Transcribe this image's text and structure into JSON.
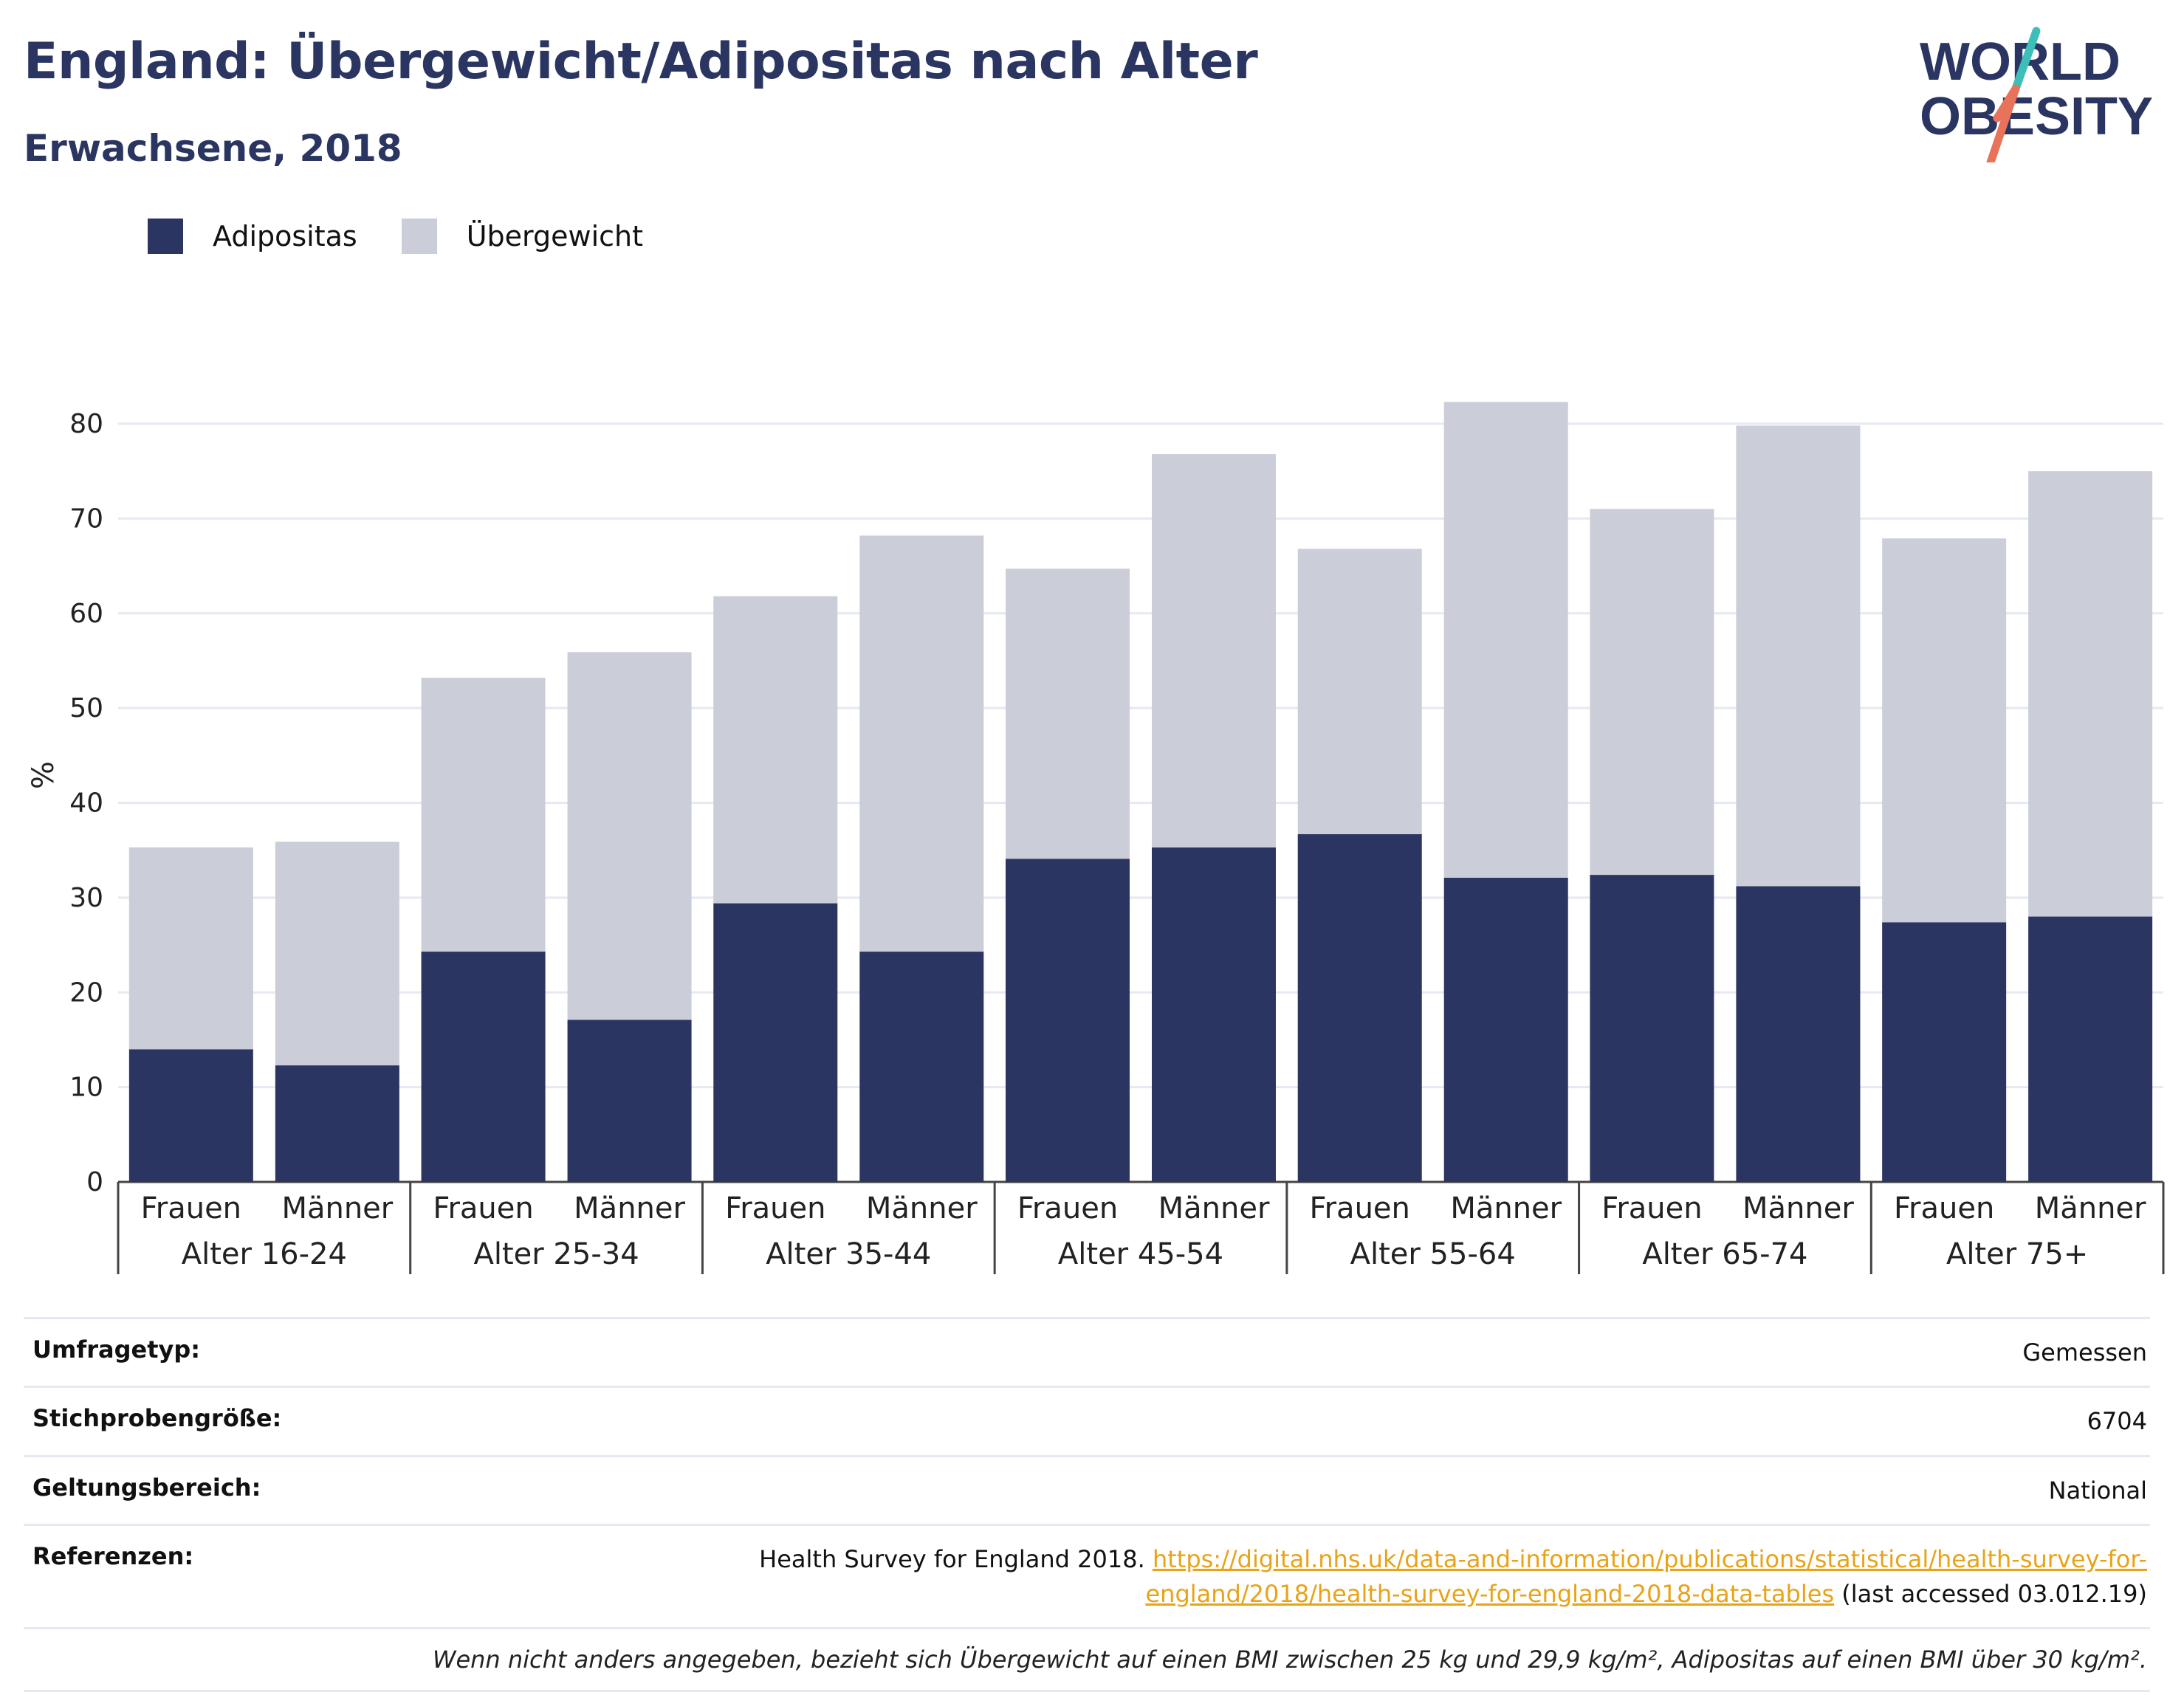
{
  "header": {
    "title": "England: Übergewicht/Adipositas nach Alter",
    "subtitle": "Erwachsene, 2018"
  },
  "logo": {
    "line1": "WORLD",
    "line2": "OBESITY",
    "colors": {
      "text": "#2a3561",
      "slash_top": "#3bbfb8",
      "slash_bottom": "#e8735a"
    }
  },
  "colors": {
    "adipositas": "#2a3561",
    "uebergewicht": "#cbcdd8",
    "link": "#e8a317",
    "grid": "#e6e9f2"
  },
  "chart_data": {
    "type": "bar",
    "stacked": true,
    "title": "England: Übergewicht/Adipositas nach Alter",
    "subtitle": "Erwachsene, 2018",
    "ylabel": "%",
    "xlabel": "",
    "ylim": [
      0,
      80
    ],
    "yticks": [
      0,
      10,
      20,
      30,
      40,
      50,
      60,
      70,
      80
    ],
    "grid": true,
    "legend_position": "top-left",
    "groups": [
      "Alter 16-24",
      "Alter 25-34",
      "Alter 35-44",
      "Alter 45-54",
      "Alter 55-64",
      "Alter 65-74",
      "Alter 75+"
    ],
    "subcategories": [
      "Frauen",
      "Männer"
    ],
    "series": [
      {
        "name": "Adipositas",
        "color": "#2a3561",
        "values": [
          14,
          12.3,
          24.3,
          17.1,
          29.4,
          24.3,
          34.1,
          35.3,
          36.7,
          32.1,
          32.4,
          31.2,
          27.4,
          28
        ]
      },
      {
        "name": "Übergewicht",
        "color": "#cbcdd8",
        "values": [
          21.3,
          23.6,
          28.9,
          38.8,
          32.4,
          43.9,
          30.6,
          41.5,
          30.1,
          50.2,
          38.6,
          48.6,
          40.5,
          47
        ]
      }
    ]
  },
  "info": {
    "survey_type_label": "Umfragetyp:",
    "survey_type_value": "Gemessen",
    "sample_size_label": "Stichprobengröße:",
    "sample_size_value": "6704",
    "scope_label": "Geltungsbereich:",
    "scope_value": "National",
    "references_label": "Referenzen:",
    "references_text": "Health Survey for England 2018.",
    "references_link": "https://digital.nhs.uk/data-and-information/publications/statistical/health-survey-for-england/2018/health-survey-for-england-2018-data-tables",
    "references_suffix": "(last accessed 03.012.19)",
    "footnote": "Wenn nicht anders angegeben, bezieht sich Übergewicht auf einen BMI zwischen 25 kg und 29,9 kg/m², Adipositas auf einen BMI über 30 kg/m²."
  }
}
